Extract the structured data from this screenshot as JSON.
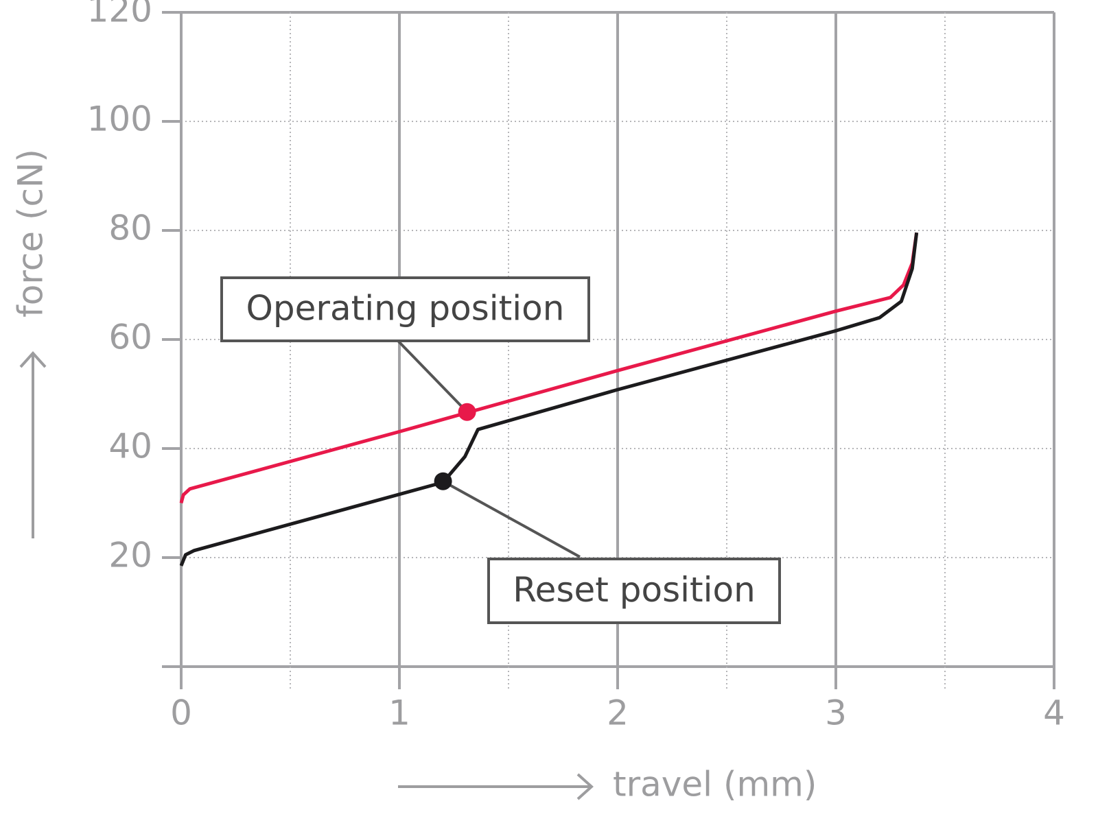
{
  "chart_data": {
    "type": "line",
    "x_label": "travel (mm)",
    "y_label": "force (cN)",
    "xlim": [
      0,
      4
    ],
    "xticks": [
      0,
      1,
      2,
      3,
      4
    ],
    "xminor": [
      0.5,
      1.5,
      2.5,
      3.5
    ],
    "ylim": [
      0,
      120
    ],
    "yticks": [
      20,
      40,
      60,
      80,
      100,
      120
    ],
    "grid": true,
    "series": [
      {
        "color": "#e8194a",
        "x": [
          0,
          0.01,
          0.04,
          1,
          2,
          3,
          3.25,
          3.31,
          3.35,
          3.37
        ],
        "values": [
          30,
          31.5,
          32.6,
          43.1,
          54.3,
          65.2,
          67.7,
          70,
          74,
          79.6
        ]
      },
      {
        "color": "#1c1b1d",
        "x": [
          0,
          0.02,
          0.06,
          1.2,
          1.3,
          1.36,
          2,
          3,
          3.2,
          3.3,
          3.35,
          3.37
        ],
        "values": [
          18.5,
          20.5,
          21.3,
          33.8,
          38.5,
          43.5,
          50.8,
          61.6,
          64,
          67,
          73,
          79.6
        ]
      }
    ],
    "annotations": [
      {
        "text": "Operating position",
        "x": 1.31,
        "y": 46.7,
        "color": "#e8194a"
      },
      {
        "text": "Reset position",
        "x": 1.2,
        "y": 34,
        "color": "#1c1b1d"
      }
    ]
  }
}
